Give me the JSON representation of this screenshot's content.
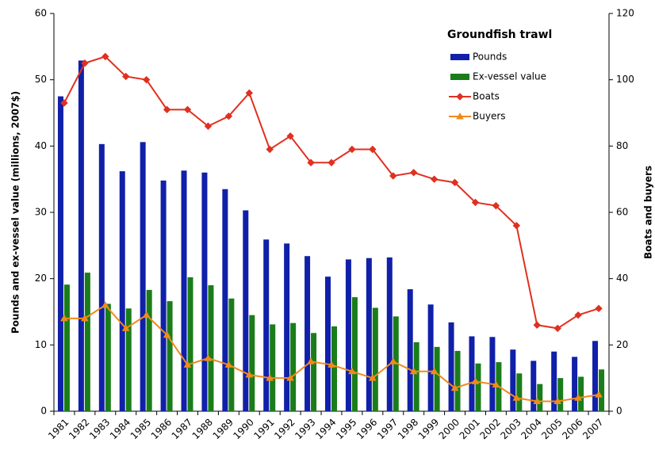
{
  "chart_data": {
    "type": "bar",
    "legend_title": "Groundfish trawl",
    "ylabel": "Pounds and ex-vessel value (millions, 2007$)",
    "y2label": "Boats and buyers",
    "categories": [
      "1981",
      "1982",
      "1983",
      "1984",
      "1985",
      "1986",
      "1987",
      "1988",
      "1989",
      "1990",
      "1991",
      "1992",
      "1993",
      "1994",
      "1995",
      "1996",
      "1997",
      "1998",
      "1999",
      "2000",
      "2001",
      "2002",
      "2003",
      "2004",
      "2005",
      "2006",
      "2007"
    ],
    "series": [
      {
        "name": "Pounds",
        "type": "bar",
        "color": "#1020a8",
        "values": [
          47.5,
          52.9,
          40.3,
          36.2,
          40.6,
          34.8,
          36.3,
          36,
          33.5,
          30.3,
          25.9,
          25.3,
          23.4,
          20.3,
          22.9,
          23.1,
          23.2,
          18.4,
          16.1,
          13.4,
          11.3,
          11.2,
          9.3,
          7.6,
          9.0,
          8.2,
          10.6
        ]
      },
      {
        "name": "Ex-vessel value",
        "type": "bar",
        "color": "#1a7d1a",
        "values": [
          19.1,
          20.9,
          16.2,
          15.5,
          18.3,
          16.6,
          20.2,
          19,
          17,
          14.5,
          13.1,
          13.3,
          11.8,
          12.8,
          17.2,
          15.6,
          14.3,
          10.4,
          9.7,
          9.1,
          7.2,
          7.4,
          5.7,
          4.1,
          5.0,
          5.2,
          6.3
        ]
      },
      {
        "name": "Boats",
        "type": "line",
        "marker": "diamond",
        "axis": "y2",
        "color": "#e03020",
        "values": [
          93,
          105,
          107,
          101,
          100,
          91,
          91,
          86,
          89,
          96,
          79,
          83,
          75,
          75,
          79,
          79,
          71,
          72,
          70,
          69,
          63,
          62,
          56,
          26,
          25,
          29,
          31
        ]
      },
      {
        "name": "Buyers",
        "type": "line",
        "marker": "triangle",
        "axis": "y2",
        "color": "#f08a1c",
        "values": [
          28,
          28,
          32,
          25,
          29,
          23,
          14,
          16,
          14,
          11,
          10,
          10,
          15,
          14,
          12,
          10,
          15,
          12,
          12,
          7,
          9,
          8,
          4,
          3,
          3,
          4,
          5
        ]
      }
    ],
    "ylim": [
      0,
      60
    ],
    "yticks": [
      0,
      10,
      20,
      30,
      40,
      50,
      60
    ],
    "y2lim": [
      0,
      120
    ],
    "y2ticks": [
      0,
      20,
      40,
      60,
      80,
      100,
      120
    ],
    "grid": false
  }
}
